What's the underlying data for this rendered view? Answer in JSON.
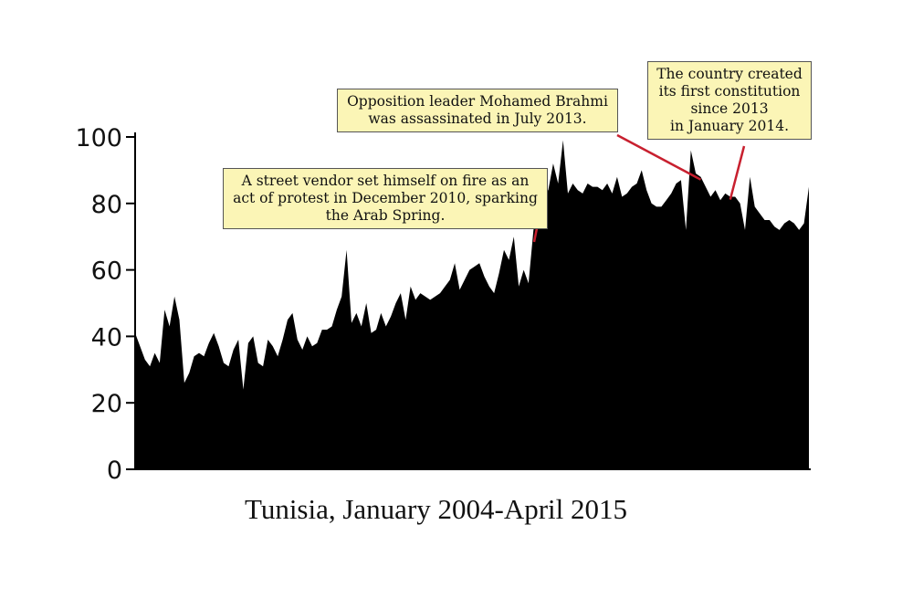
{
  "chart_data": {
    "type": "area",
    "title": "Tunisia, January 2004-April 2015",
    "ylim": [
      0,
      100
    ],
    "yticks": [
      "0",
      "20",
      "40",
      "60",
      "80",
      "100"
    ],
    "color": "#000000",
    "series": [
      {
        "values": [
          41,
          37,
          33,
          31,
          35,
          32,
          48,
          43,
          52,
          45,
          26,
          29,
          34,
          35,
          34,
          38,
          41,
          37,
          32,
          31,
          36,
          39,
          24,
          38,
          40,
          32,
          31,
          39,
          37,
          34,
          39,
          45,
          47,
          39,
          36,
          40,
          37,
          38,
          42,
          42,
          43,
          48,
          52,
          66,
          44,
          47,
          43,
          50,
          41,
          42,
          47,
          43,
          46,
          50,
          53,
          45,
          55,
          51,
          53,
          52,
          51,
          52,
          53,
          55,
          57,
          62,
          54,
          57,
          60,
          61,
          62,
          58,
          55,
          53,
          59,
          66,
          63,
          70,
          55,
          60,
          56,
          72,
          78,
          83,
          84,
          92,
          86,
          99,
          83,
          86,
          84,
          83,
          86,
          85,
          85,
          84,
          86,
          83,
          88,
          82,
          83,
          85,
          86,
          90,
          84,
          80,
          79,
          79,
          81,
          83,
          86,
          87,
          72,
          96,
          89,
          88,
          85,
          82,
          84,
          81,
          83,
          82,
          82,
          80,
          72,
          88,
          79,
          77,
          75,
          75,
          73,
          72,
          74,
          75,
          74,
          72,
          74,
          85
        ]
      }
    ],
    "annotations": [
      {
        "text": "A street vendor set himself on fire as an\nact of protest in December 2010, sparking\nthe Arab Spring.",
        "x_index": 83
      },
      {
        "text": "Opposition leader Mohamed Brahmi\nwas assassinated in July 2013.",
        "x_index": 115
      },
      {
        "text": "The country created\nits first constitution\nsince 2013\nin January 2014.",
        "x_index": 121
      }
    ]
  }
}
